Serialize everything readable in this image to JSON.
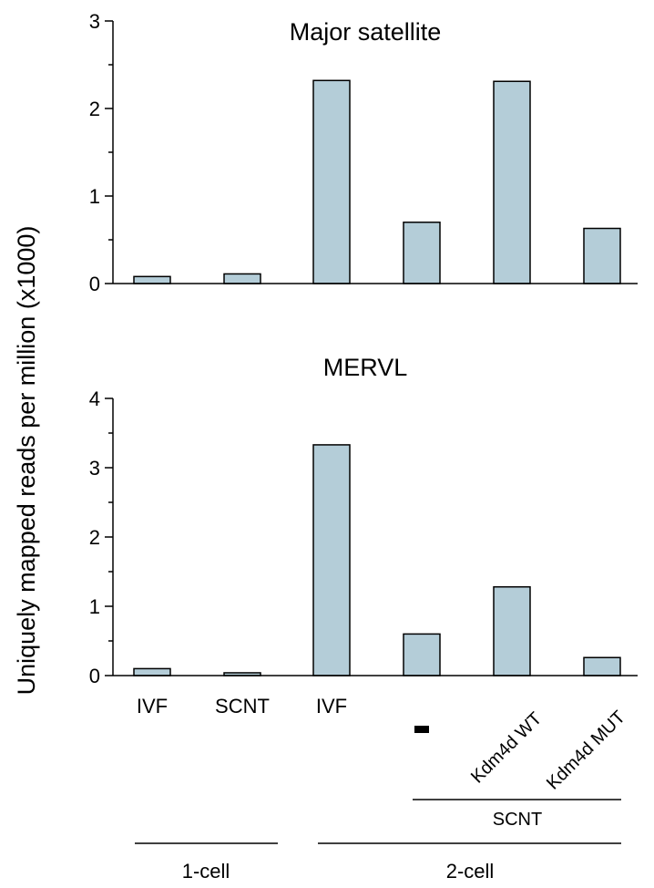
{
  "y_axis_label": "Uniquely mapped reads per million (x1000)",
  "colors": {
    "bar_fill": "#b4cdd8",
    "bar_stroke": "#000000"
  },
  "chart_data": [
    {
      "type": "bar",
      "title": "Major satellite",
      "categories": [
        "IVF",
        "SCNT",
        "IVF",
        "-",
        "Kdm4d WT",
        "Kdm4d MUT"
      ],
      "values": [
        0.08,
        0.11,
        2.32,
        0.7,
        2.31,
        0.63
      ],
      "ylim": [
        0,
        3
      ],
      "yticks": [
        0,
        1,
        2,
        3
      ],
      "grid": false
    },
    {
      "type": "bar",
      "title": "MERVL",
      "categories": [
        "IVF",
        "SCNT",
        "IVF",
        "-",
        "Kdm4d WT",
        "Kdm4d MUT"
      ],
      "values": [
        0.1,
        0.04,
        3.33,
        0.6,
        1.28,
        0.26
      ],
      "ylim": [
        0,
        4
      ],
      "yticks": [
        0,
        1,
        2,
        3,
        4
      ],
      "grid": false
    }
  ],
  "group_labels": {
    "scnt": "SCNT",
    "one_cell": "1-cell",
    "two_cell": "2-cell"
  }
}
